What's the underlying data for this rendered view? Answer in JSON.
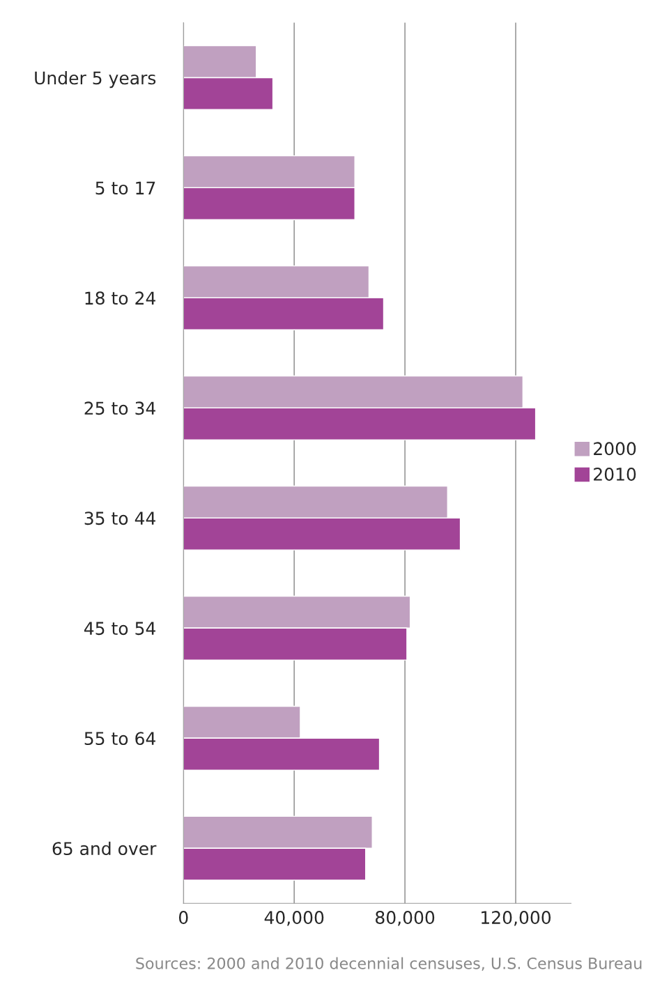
{
  "chart_data": {
    "type": "bar",
    "orientation": "horizontal",
    "categories": [
      "Under 5 years",
      "5 to 17",
      "18 to 24",
      "25 to 34",
      "35 to 44",
      "45 to 54",
      "55 to 64",
      "65 and over"
    ],
    "series": [
      {
        "name": "2000",
        "color": "#c0a0c0",
        "values": [
          26300,
          61900,
          67000,
          122600,
          95400,
          81900,
          42200,
          68200
        ]
      },
      {
        "name": "2010",
        "color": "#a24497",
        "values": [
          32300,
          61900,
          72300,
          127200,
          100000,
          80700,
          70800,
          65800
        ]
      }
    ],
    "xlim": [
      0,
      140000
    ],
    "xticks": [
      0,
      {
        "value": 40000,
        "label": "40,000"
      },
      {
        "value": 80000,
        "label": "80,000"
      },
      {
        "value": 120000,
        "label": "120,000"
      }
    ],
    "grid": "x",
    "legend": "right",
    "annotations": [
      "Sources: 2000 and 2010 decennial censuses, U.S. Census Bureau"
    ]
  }
}
